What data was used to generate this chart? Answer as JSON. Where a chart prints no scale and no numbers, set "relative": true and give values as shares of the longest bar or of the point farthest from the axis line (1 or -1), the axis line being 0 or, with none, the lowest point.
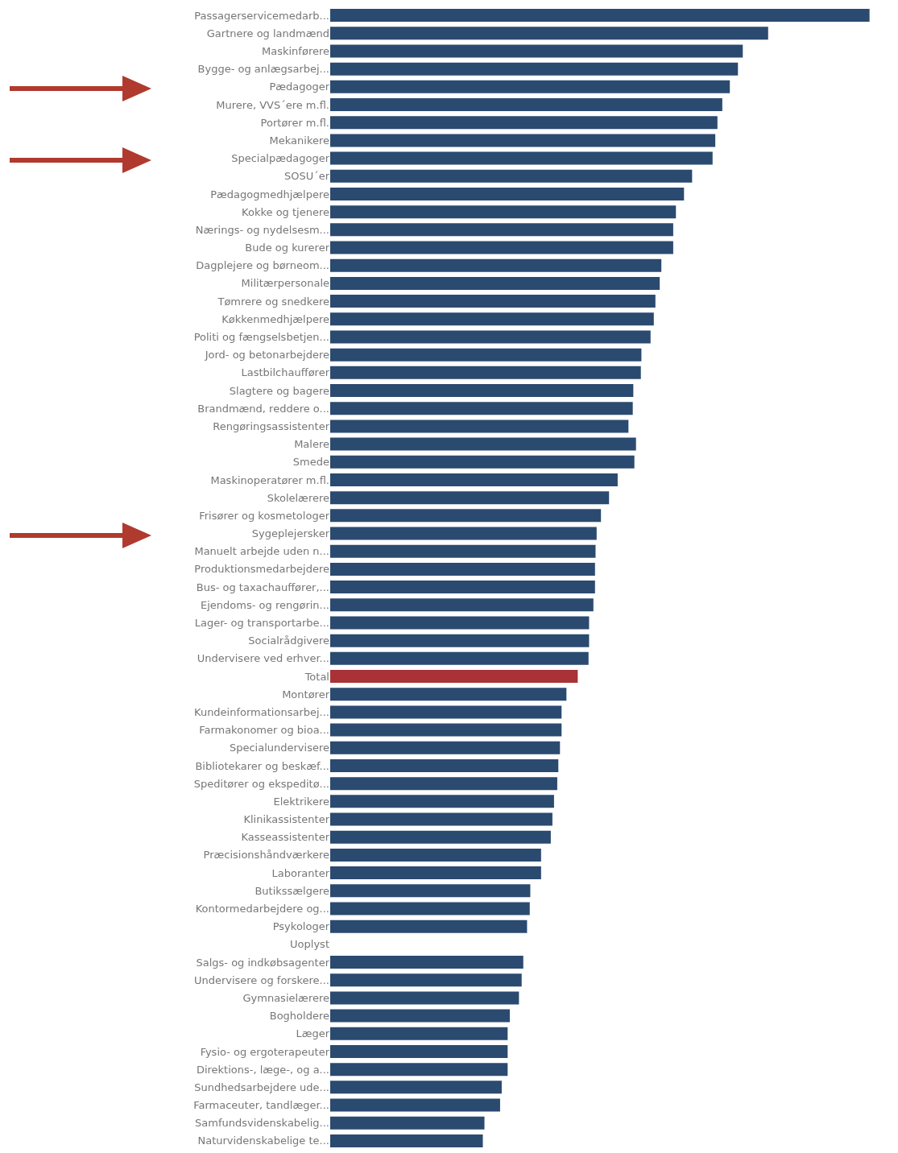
{
  "chart_data": {
    "type": "bar",
    "orientation": "horizontal",
    "relative": true,
    "categories": [
      "Passagerservicemedarb...",
      "Gartnere og landmænd",
      "Maskinførere",
      "Bygge- og anlægsarbej...",
      "Pædagoger",
      "Murere, VVS´ere m.fl.",
      "Portører m.fl.",
      "Mekanikere",
      "Specialpædagoger",
      "SOSU´er",
      "Pædagogmedhjælpere",
      "Kokke og tjenere",
      "Nærings- og nydelsesm...",
      "Bude og kurerer",
      "Dagplejere og børneom...",
      "Militærpersonale",
      "Tømrere og snedkere",
      "Køkkenmedhjælpere",
      "Politi og fængselsbetjen...",
      "Jord- og betonarbejdere",
      "Lastbilchauffører",
      "Slagtere og bagere",
      "Brandmænd, reddere o...",
      "Rengøringsassistenter",
      "Malere",
      "Smede",
      "Maskinoperatører m.fl.",
      "Skolelærere",
      "Frisører og kosmetologer",
      "Sygeplejersker",
      "Manuelt arbejde uden n...",
      "Produktionsmedarbejdere",
      "Bus- og taxachauffører,...",
      "Ejendoms- og rengørin...",
      "Lager- og transportarbe...",
      "Socialrådgivere",
      "Undervisere ved erhver...",
      "Total",
      "Montører",
      "Kundeinformationsarbej...",
      "Farmakonomer og bioa...",
      "Specialundervisere",
      "Bibliotekarer og beskæf...",
      "Speditører og ekspeditø...",
      "Elektrikere",
      "Klinikassistenter",
      "Kasseassistenter",
      "Præcisionshåndværkere",
      "Laboranter",
      "Butikssælgere",
      "Kontormedarbejdere og...",
      "Psykologer",
      "Uoplyst",
      "Salgs- og indkøbsagenter",
      "Undervisere og forskere...",
      "Gymnasielærere",
      "Bogholdere",
      "Læger",
      "Fysio- og ergoterapeuter",
      "Direktions-, læge-, og a...",
      "Sundhedsarbejdere ude...",
      "Farmaceuter, tandlæger...",
      "Samfundsvidenskabelig...",
      "Naturvidenskabelige te..."
    ],
    "values": [
      1.0,
      0.812,
      0.765,
      0.756,
      0.741,
      0.727,
      0.718,
      0.714,
      0.709,
      0.671,
      0.656,
      0.641,
      0.636,
      0.636,
      0.614,
      0.611,
      0.603,
      0.6,
      0.594,
      0.577,
      0.576,
      0.562,
      0.561,
      0.553,
      0.567,
      0.564,
      0.533,
      0.517,
      0.502,
      0.494,
      0.492,
      0.491,
      0.491,
      0.488,
      0.48,
      0.48,
      0.479,
      0.459,
      0.438,
      0.429,
      0.429,
      0.426,
      0.423,
      0.421,
      0.415,
      0.412,
      0.409,
      0.391,
      0.391,
      0.371,
      0.37,
      0.365,
      null,
      0.358,
      0.355,
      0.35,
      0.333,
      0.329,
      0.329,
      0.329,
      0.318,
      0.315,
      0.286,
      0.283
    ],
    "colors": [
      "#2b4a70",
      "#2b4a70",
      "#2b4a70",
      "#2b4a70",
      "#2b4a70",
      "#2b4a70",
      "#2b4a70",
      "#2b4a70",
      "#2b4a70",
      "#2b4a70",
      "#2b4a70",
      "#2b4a70",
      "#2b4a70",
      "#2b4a70",
      "#2b4a70",
      "#2b4a70",
      "#2b4a70",
      "#2b4a70",
      "#2b4a70",
      "#2b4a70",
      "#2b4a70",
      "#2b4a70",
      "#2b4a70",
      "#2b4a70",
      "#2b4a70",
      "#2b4a70",
      "#2b4a70",
      "#2b4a70",
      "#2b4a70",
      "#2b4a70",
      "#2b4a70",
      "#2b4a70",
      "#2b4a70",
      "#2b4a70",
      "#2b4a70",
      "#2b4a70",
      "#2b4a70",
      "#a83236",
      "#2b4a70",
      "#2b4a70",
      "#2b4a70",
      "#2b4a70",
      "#2b4a70",
      "#2b4a70",
      "#2b4a70",
      "#2b4a70",
      "#2b4a70",
      "#2b4a70",
      "#2b4a70",
      "#2b4a70",
      "#2b4a70",
      "#2b4a70",
      "#2b4a70",
      "#2b4a70",
      "#2b4a70",
      "#2b4a70",
      "#2b4a70",
      "#2b4a70",
      "#2b4a70",
      "#2b4a70",
      "#2b4a70",
      "#2b4a70",
      "#2b4a70",
      "#2b4a70"
    ]
  }
}
